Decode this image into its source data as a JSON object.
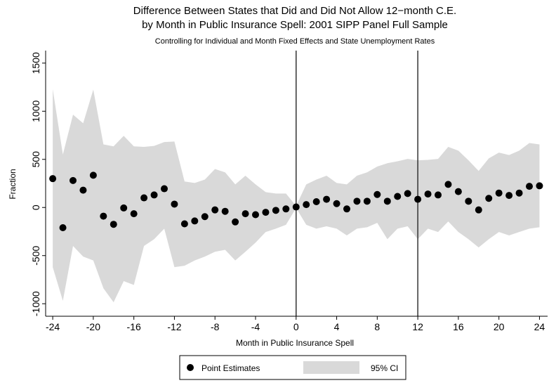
{
  "chart_data": {
    "type": "scatter",
    "title": [
      "Difference Between States that Did and Did Not Allow 12−month C.E.",
      "by Month in Public Insurance Spell: 2001 SIPP Panel Full Sample"
    ],
    "subtitle": "Controlling for Individual and Month Fixed Effects and State Unemployment Rates",
    "x_label": "Month in Public Insurance Spell",
    "y_label": "Fraction",
    "x": [
      -24,
      -23,
      -22,
      -21,
      -20,
      -19,
      -18,
      -17,
      -16,
      -15,
      -14,
      -13,
      -12,
      -11,
      -10,
      -9,
      -8,
      -7,
      -6,
      -5,
      -4,
      -3,
      -2,
      -1,
      0,
      1,
      2,
      3,
      4,
      5,
      6,
      7,
      8,
      9,
      10,
      11,
      12,
      13,
      14,
      15,
      16,
      17,
      18,
      19,
      20,
      21,
      22,
      23,
      24
    ],
    "series": [
      {
        "name": "Point Estimates",
        "color": "#000000",
        "values": [
          300,
          -210,
          280,
          180,
          335,
          -90,
          -175,
          -5,
          -65,
          100,
          130,
          195,
          35,
          -170,
          -140,
          -95,
          -25,
          -40,
          -150,
          -65,
          -75,
          -50,
          -30,
          -15,
          5,
          30,
          60,
          85,
          40,
          -15,
          65,
          65,
          135,
          65,
          115,
          145,
          85,
          140,
          130,
          240,
          165,
          65,
          -25,
          95,
          150,
          125,
          150,
          220,
          225
        ]
      }
    ],
    "ci": {
      "name": "95% CI",
      "color": "#d9d9d9",
      "upper": [
        1230,
        550,
        965,
        875,
        1225,
        655,
        635,
        745,
        635,
        630,
        640,
        680,
        685,
        270,
        255,
        290,
        400,
        365,
        240,
        330,
        240,
        160,
        145,
        145,
        15,
        240,
        290,
        330,
        255,
        240,
        330,
        365,
        425,
        460,
        480,
        505,
        490,
        495,
        505,
        630,
        590,
        490,
        380,
        510,
        570,
        545,
        590,
        670,
        655
      ],
      "lower": [
        -620,
        -970,
        -400,
        -510,
        -550,
        -840,
        -985,
        -765,
        -805,
        -400,
        -330,
        -220,
        -620,
        -605,
        -550,
        -510,
        -460,
        -440,
        -550,
        -460,
        -365,
        -255,
        -220,
        -180,
        -5,
        -180,
        -220,
        -195,
        -220,
        -290,
        -220,
        -205,
        -160,
        -330,
        -220,
        -195,
        -330,
        -220,
        -255,
        -145,
        -255,
        -330,
        -415,
        -330,
        -255,
        -290,
        -255,
        -220,
        -205
      ]
    },
    "vlines": [
      0,
      12
    ],
    "xlim": [
      -24.7,
      24.8
    ],
    "ylim": [
      -1130,
      1630
    ],
    "xticks": [
      -24,
      -20,
      -16,
      -12,
      -8,
      -4,
      0,
      4,
      8,
      12,
      16,
      20,
      24
    ],
    "yticks": [
      -1000,
      -500,
      0,
      500,
      1000,
      1500
    ]
  }
}
